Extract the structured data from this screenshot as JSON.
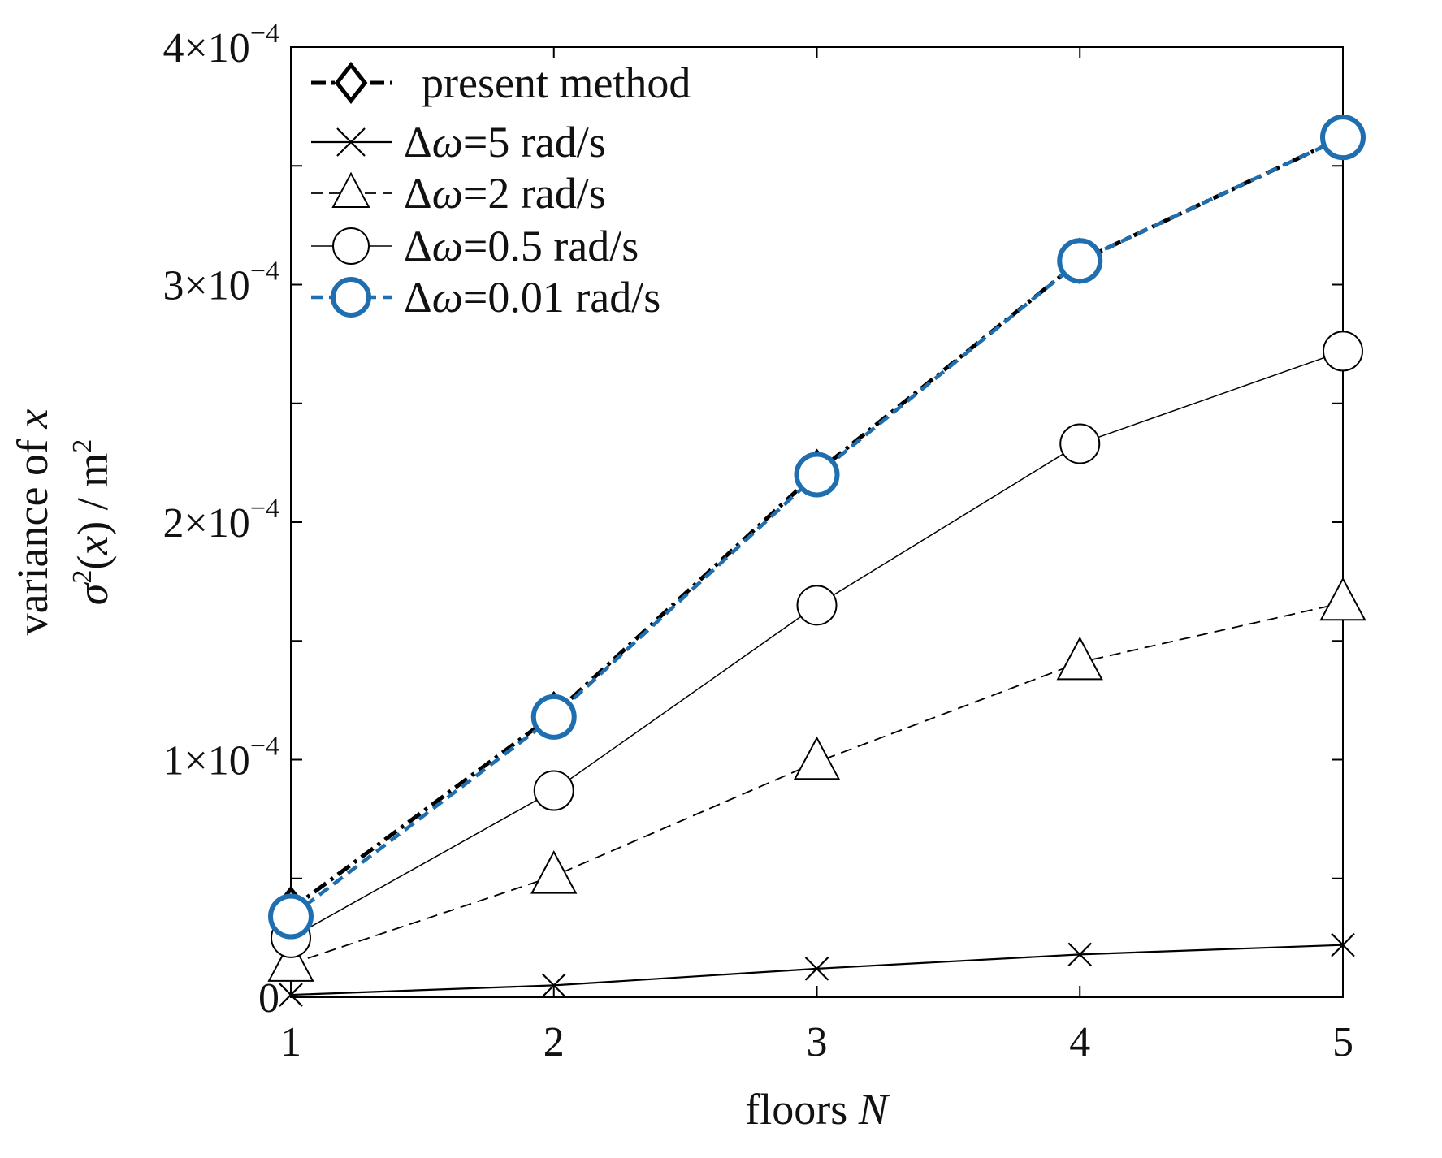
{
  "chart_data": {
    "type": "line",
    "xlabel": {
      "prefix": "floors ",
      "var": "N"
    },
    "ylabel": {
      "line1_prefix": "variance of ",
      "line1_var": "x",
      "line2_sigma": "σ",
      "line2_sup": "2",
      "line2_mid": "(",
      "line2_var": "x",
      "line2_rest": ") / m",
      "line2_unit_sup": "2"
    },
    "x": [
      1,
      2,
      3,
      4,
      5
    ],
    "xlim": [
      1,
      5
    ],
    "ylim": [
      0,
      0.0004
    ],
    "x_ticks": [
      {
        "value": 1,
        "label": "1"
      },
      {
        "value": 2,
        "label": "2"
      },
      {
        "value": 3,
        "label": "3"
      },
      {
        "value": 4,
        "label": "4"
      },
      {
        "value": 5,
        "label": "5"
      }
    ],
    "y_ticks_minor": [
      5e-05,
      0.00015,
      0.00025,
      0.00035
    ],
    "y_ticks": [
      {
        "value": 0,
        "label": "0",
        "mantissa": "",
        "exponent": ""
      },
      {
        "value": 0.0001,
        "label": "1×10^−4",
        "mantissa": "1×10",
        "exponent": "−4"
      },
      {
        "value": 0.0002,
        "label": "2×10^−4",
        "mantissa": "2×10",
        "exponent": "−4"
      },
      {
        "value": 0.0003,
        "label": "3×10^−4",
        "mantissa": "3×10",
        "exponent": "−4"
      },
      {
        "value": 0.0004,
        "label": "4×10^−4",
        "mantissa": "4×10",
        "exponent": "−4"
      }
    ],
    "grid": false,
    "legend_position": "top-left",
    "series": [
      {
        "name": "present method",
        "label_parts": {
          "plain": "present method"
        },
        "values": [
          3.7e-05,
          0.000119,
          0.000221,
          0.00031,
          0.000362
        ],
        "color": "#000000",
        "marker": "diamond",
        "dash": "dashdot"
      },
      {
        "name": "Δω=5 rad/s",
        "label_parts": {
          "pre": "Δ",
          "var": "ω",
          "post": "=5 rad/s"
        },
        "values": [
          1e-06,
          5e-06,
          1.2e-05,
          1.8e-05,
          2.2e-05
        ],
        "color": "#000000",
        "marker": "x",
        "dash": "solid"
      },
      {
        "name": "Δω=2 rad/s",
        "label_parts": {
          "pre": "Δ",
          "var": "ω",
          "post": "=2 rad/s"
        },
        "values": [
          1.4e-05,
          5.1e-05,
          9.9e-05,
          0.000141,
          0.000166
        ],
        "color": "#000000",
        "marker": "triangle",
        "dash": "dashed"
      },
      {
        "name": "Δω=0.5 rad/s",
        "label_parts": {
          "pre": "Δ",
          "var": "ω",
          "post": "=0.5 rad/s"
        },
        "values": [
          2.5e-05,
          8.7e-05,
          0.000165,
          0.000233,
          0.000272
        ],
        "color": "#000000",
        "marker": "circle",
        "dash": "solid"
      },
      {
        "name": "Δω=0.01 rad/s",
        "label_parts": {
          "pre": "Δ",
          "var": "ω",
          "post": "=0.01 rad/s"
        },
        "values": [
          3.4e-05,
          0.000118,
          0.00022,
          0.00031,
          0.000362
        ],
        "color": "#1f6fb0",
        "marker": "circle-bold",
        "dash": "dashed"
      }
    ]
  }
}
